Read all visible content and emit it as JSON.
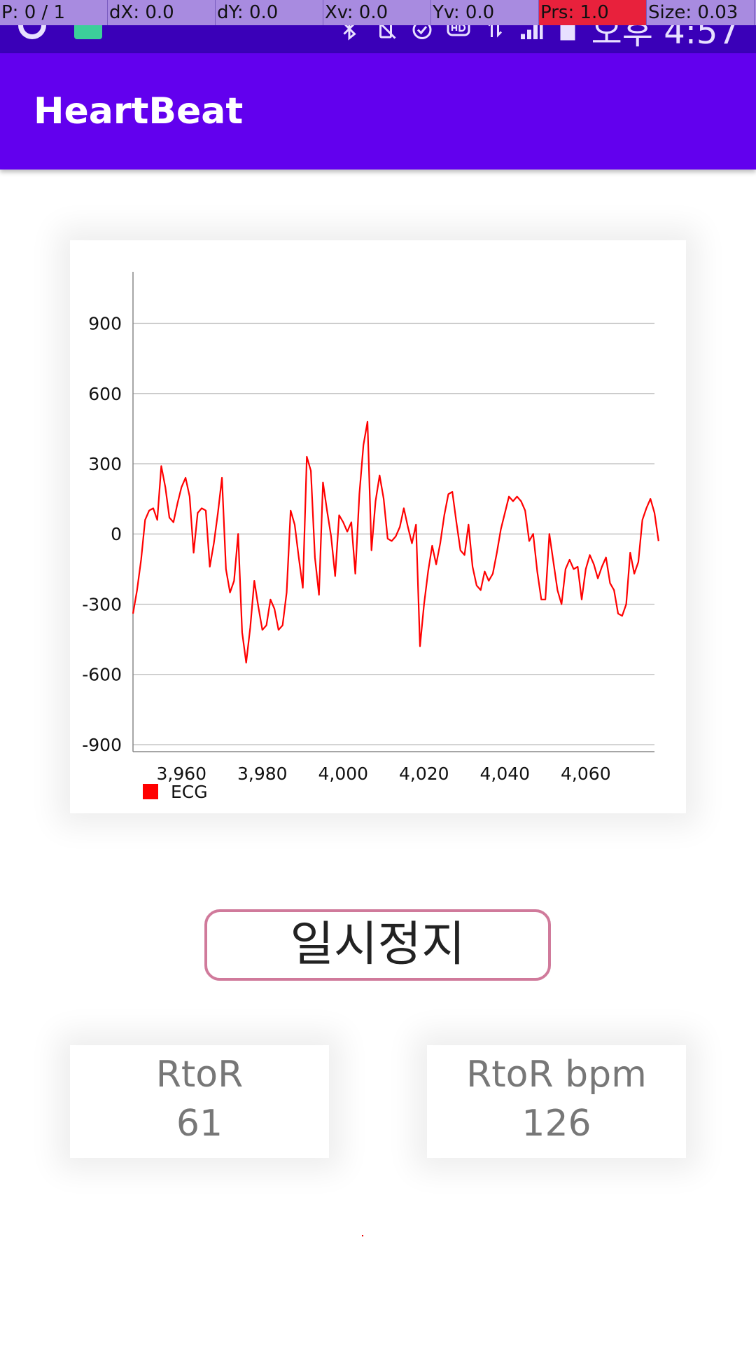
{
  "debug": {
    "p": "P: 0 / 1",
    "dx": "dX: 0.0",
    "dy": "dY: 0.0",
    "xv": "Xv: 0.0",
    "yv": "Yv: 0.0",
    "prs": "Prs: 1.0",
    "size": "Size: 0.03"
  },
  "status_bar": {
    "time": "오후 4:57",
    "icons": [
      "bluetooth-icon",
      "vibrate-icon",
      "alarm-icon",
      "hd-icon",
      "data-icon",
      "signal-icon",
      "battery-icon"
    ]
  },
  "app_bar": {
    "title": "HeartBeat",
    "color": "#6200ee"
  },
  "chart_data": {
    "type": "line",
    "title": "",
    "xlabel": "",
    "ylabel": "",
    "xlim": [
      3948,
      4077
    ],
    "ylim": [
      -930,
      1120
    ],
    "x_ticks": [
      "3,960",
      "3,980",
      "4,000",
      "4,020",
      "4,040",
      "4,060"
    ],
    "y_ticks": [
      "900",
      "600",
      "300",
      "0",
      "-300",
      "-600",
      "-900"
    ],
    "grid": "horizontal",
    "legend": "bottom-left",
    "series": [
      {
        "name": "ECG",
        "color": "#ff0000",
        "x_start": 3948,
        "x_step": 1,
        "values": [
          -340,
          -240,
          -110,
          60,
          100,
          110,
          60,
          290,
          200,
          70,
          50,
          130,
          200,
          240,
          160,
          -80,
          90,
          110,
          100,
          -140,
          -40,
          90,
          240,
          -150,
          -250,
          -200,
          0,
          -420,
          -550,
          -400,
          -200,
          -310,
          -410,
          -390,
          -280,
          -320,
          -410,
          -390,
          -250,
          100,
          40,
          -100,
          -230,
          330,
          270,
          -100,
          -260,
          220,
          100,
          -10,
          -180,
          80,
          50,
          10,
          50,
          -170,
          170,
          380,
          480,
          -70,
          140,
          250,
          150,
          -20,
          -30,
          -10,
          30,
          110,
          30,
          -40,
          40,
          -480,
          -300,
          -160,
          -50,
          -130,
          -40,
          80,
          170,
          180,
          50,
          -70,
          -90,
          40,
          -140,
          -220,
          -240,
          -160,
          -200,
          -170,
          -80,
          20,
          90,
          160,
          140,
          160,
          140,
          100,
          -30,
          0,
          -160,
          -280,
          -280,
          0,
          -120,
          -240,
          -300,
          -150,
          -110,
          -150,
          -140,
          -280,
          -150,
          -90,
          -130,
          -190,
          -140,
          -100,
          -210,
          -240,
          -340,
          -350,
          -300,
          -80,
          -170,
          -120,
          60,
          110,
          150,
          90,
          -30
        ]
      }
    ]
  },
  "controls": {
    "pause_label": "일시정지",
    "pause_border": "#d07a9b"
  },
  "stats": {
    "rtor_label": "RtoR",
    "rtor_value": "61",
    "bpm_label": "RtoR bpm",
    "bpm_value": "126"
  }
}
